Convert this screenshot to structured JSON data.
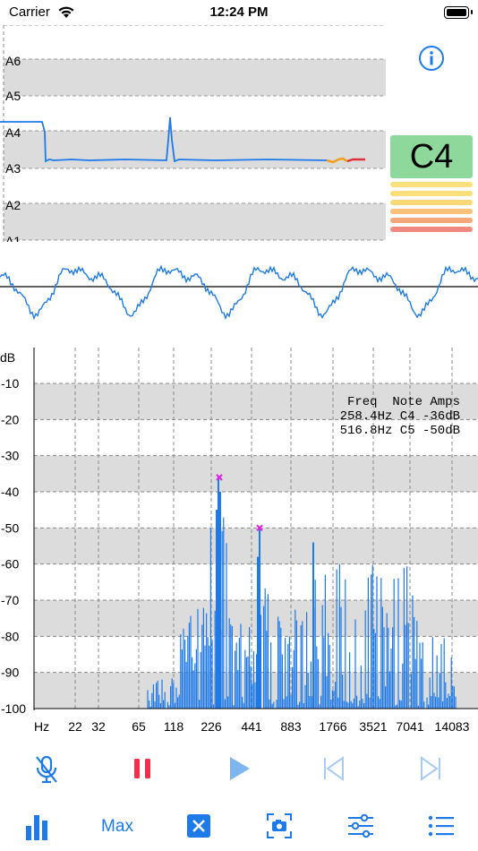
{
  "status_bar": {
    "carrier": "Carrier",
    "time": "12:24 PM"
  },
  "pitch_panel": {
    "note_labels": [
      "A6",
      "A5",
      "A4",
      "A3",
      "A2",
      "A1"
    ],
    "current_note": "C4",
    "info_icon": "info-icon"
  },
  "spectrum": {
    "y_unit": "dB",
    "y_ticks": [
      "-10",
      "-20",
      "-30",
      "-40",
      "-50",
      "-60",
      "-70",
      "-80",
      "-90",
      "-100"
    ],
    "x_unit": "Hz",
    "x_ticks": [
      "22",
      "32",
      "65",
      "118",
      "226",
      "441",
      "883",
      "1766",
      "3521",
      "7041",
      "14083"
    ],
    "table_header": "Freq  Note Amps",
    "table_rows": [
      "258.4Hz C4 -36dB",
      "516.8Hz C5 -50dB"
    ],
    "peak_color": "#e020e0",
    "bar_color": "#1e7ae8"
  },
  "controls": {
    "mute_mic_icon": "mic-slash-icon",
    "pause_icon": "pause-icon",
    "play_icon": "play-icon",
    "skip_back_icon": "skip-back-icon",
    "skip_forward_icon": "skip-forward-icon",
    "accent_color": "#1e7ae8",
    "pause_color": "#f0304a"
  },
  "toolbar": {
    "chart_icon": "bar-chart-icon",
    "max_label": "Max",
    "clear_icon": "close-box-icon",
    "camera_icon": "camera-icon",
    "sliders_icon": "sliders-icon",
    "list_icon": "list-icon"
  }
}
